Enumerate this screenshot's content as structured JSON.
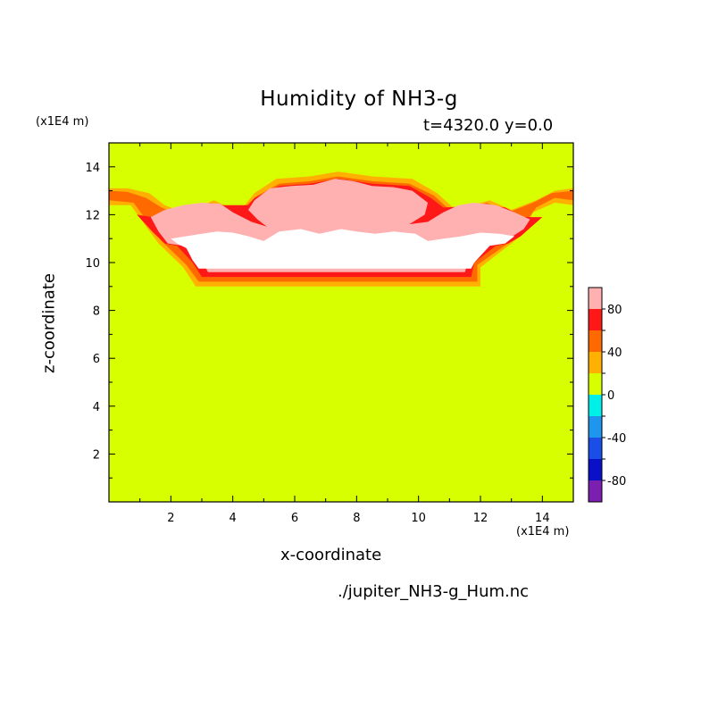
{
  "chart_data": {
    "type": "heatmap",
    "title": "Humidity of NH3-g",
    "subtitle": "t=4320.0 y=0.0",
    "xlabel": "x-coordinate",
    "ylabel": "z-coordinate",
    "x_unit": "(x1E4 m)",
    "y_unit": "(x1E4 m)",
    "xlim": [
      0,
      15
    ],
    "ylim": [
      0,
      15
    ],
    "x_ticks": [
      2,
      4,
      6,
      8,
      10,
      12,
      14
    ],
    "y_ticks": [
      2,
      4,
      6,
      8,
      10,
      12,
      14
    ],
    "colorbar": {
      "levels": [
        -100,
        -80,
        -60,
        -40,
        -20,
        0,
        20,
        40,
        60,
        80,
        100
      ],
      "tick_labels": [
        -80,
        -40,
        0,
        40,
        80
      ],
      "colors": [
        "#7a1fb0",
        "#0a10c8",
        "#1a4ee6",
        "#1e96ee",
        "#00f0e8",
        "#d8ff00",
        "#ffb000",
        "#ff6a00",
        "#ff1818",
        "#ffb0b0"
      ]
    },
    "background_value": 0,
    "regions": [
      {
        "level": "20-40",
        "color": "#ffb000",
        "points": [
          [
            0,
            13.1
          ],
          [
            0.6,
            13.1
          ],
          [
            1.3,
            12.9
          ],
          [
            1.8,
            12.4
          ],
          [
            2.4,
            12.1
          ],
          [
            3.4,
            12.6
          ],
          [
            4.2,
            12.1
          ],
          [
            4.7,
            12.9
          ],
          [
            5.4,
            13.5
          ],
          [
            6.5,
            13.6
          ],
          [
            7.4,
            13.8
          ],
          [
            8.5,
            13.6
          ],
          [
            9.8,
            13.5
          ],
          [
            10.6,
            12.9
          ],
          [
            11.2,
            12.2
          ],
          [
            12.3,
            12.6
          ],
          [
            13.0,
            12.2
          ],
          [
            13.8,
            12.6
          ],
          [
            14.4,
            13.0
          ],
          [
            15,
            13.1
          ],
          [
            15,
            12.4
          ],
          [
            14.4,
            12.5
          ],
          [
            13.7,
            12.1
          ],
          [
            13.4,
            11.2
          ],
          [
            13.0,
            10.8
          ],
          [
            12.0,
            9.8
          ],
          [
            12.0,
            9.0
          ],
          [
            2.8,
            9.0
          ],
          [
            2.4,
            9.8
          ],
          [
            1.6,
            10.8
          ],
          [
            1.2,
            11.5
          ],
          [
            0.7,
            12.4
          ],
          [
            0,
            12.4
          ]
        ]
      },
      {
        "level": "40-60",
        "color": "#ff6a00",
        "points": [
          [
            0,
            13.0
          ],
          [
            0.6,
            12.95
          ],
          [
            1.2,
            12.7
          ],
          [
            1.7,
            12.3
          ],
          [
            2.3,
            12.0
          ],
          [
            3.3,
            12.5
          ],
          [
            4.1,
            12.0
          ],
          [
            4.8,
            12.8
          ],
          [
            5.5,
            13.3
          ],
          [
            6.5,
            13.4
          ],
          [
            7.4,
            13.6
          ],
          [
            8.5,
            13.4
          ],
          [
            9.7,
            13.3
          ],
          [
            10.5,
            12.8
          ],
          [
            11.1,
            12.1
          ],
          [
            12.2,
            12.5
          ],
          [
            12.9,
            12.1
          ],
          [
            13.7,
            12.5
          ],
          [
            14.3,
            12.9
          ],
          [
            15,
            13.0
          ],
          [
            15,
            12.6
          ],
          [
            14.4,
            12.7
          ],
          [
            13.8,
            12.3
          ],
          [
            13.3,
            11.4
          ],
          [
            13.0,
            10.9
          ],
          [
            11.9,
            9.9
          ],
          [
            11.9,
            9.2
          ],
          [
            2.9,
            9.2
          ],
          [
            2.5,
            9.9
          ],
          [
            1.7,
            10.9
          ],
          [
            1.3,
            11.6
          ],
          [
            0.8,
            12.5
          ],
          [
            0,
            12.6
          ]
        ]
      },
      {
        "level": "60-80",
        "color": "#ff1818",
        "points": [
          [
            0.9,
            12.0
          ],
          [
            1.4,
            11.9
          ],
          [
            1.8,
            12.2
          ],
          [
            2.5,
            12.2
          ],
          [
            3.3,
            12.4
          ],
          [
            4.5,
            12.4
          ],
          [
            4.7,
            12.7
          ],
          [
            5.5,
            13.2
          ],
          [
            6.5,
            13.3
          ],
          [
            7.4,
            13.5
          ],
          [
            8.5,
            13.3
          ],
          [
            9.7,
            13.2
          ],
          [
            10.4,
            12.7
          ],
          [
            10.8,
            12.3
          ],
          [
            12.2,
            12.4
          ],
          [
            12.8,
            12.3
          ],
          [
            13.4,
            11.9
          ],
          [
            14.0,
            11.9
          ],
          [
            13.3,
            11.1
          ],
          [
            12.9,
            10.8
          ],
          [
            12.5,
            10.7
          ],
          [
            11.8,
            10.0
          ],
          [
            11.7,
            9.4
          ],
          [
            3.0,
            9.4
          ],
          [
            2.7,
            10.0
          ],
          [
            2.2,
            10.7
          ],
          [
            1.8,
            10.8
          ],
          [
            1.4,
            11.3
          ]
        ]
      },
      {
        "level": "80-100",
        "color": "#ffb0b0",
        "points": [
          [
            1.35,
            11.9
          ],
          [
            1.8,
            12.2
          ],
          [
            2.4,
            12.4
          ],
          [
            3.0,
            12.5
          ],
          [
            3.6,
            12.45
          ],
          [
            4.0,
            12.1
          ],
          [
            4.6,
            11.7
          ],
          [
            5.1,
            11.5
          ],
          [
            4.8,
            11.8
          ],
          [
            4.5,
            12.2
          ],
          [
            4.7,
            12.6
          ],
          [
            5.2,
            13.1
          ],
          [
            5.9,
            13.2
          ],
          [
            6.6,
            13.25
          ],
          [
            7.3,
            13.5
          ],
          [
            7.9,
            13.4
          ],
          [
            8.5,
            13.2
          ],
          [
            9.2,
            13.15
          ],
          [
            9.8,
            13.0
          ],
          [
            10.3,
            12.5
          ],
          [
            10.2,
            12.0
          ],
          [
            9.7,
            11.6
          ],
          [
            10.3,
            11.7
          ],
          [
            10.8,
            12.1
          ],
          [
            11.3,
            12.4
          ],
          [
            11.8,
            12.5
          ],
          [
            12.5,
            12.4
          ],
          [
            13.1,
            12.1
          ],
          [
            13.6,
            11.8
          ],
          [
            13.4,
            11.4
          ],
          [
            12.8,
            10.9
          ],
          [
            12.3,
            10.7
          ],
          [
            11.6,
            10.1
          ],
          [
            11.5,
            9.6
          ],
          [
            3.2,
            9.6
          ],
          [
            3.0,
            10.1
          ],
          [
            2.4,
            10.7
          ],
          [
            1.9,
            10.8
          ],
          [
            1.6,
            11.3
          ],
          [
            1.35,
            11.9
          ]
        ]
      },
      {
        "level": "100",
        "color": "#ffffff",
        "points": [
          [
            2.0,
            11.0
          ],
          [
            2.5,
            11.1
          ],
          [
            3.0,
            11.2
          ],
          [
            3.5,
            11.3
          ],
          [
            4.0,
            11.25
          ],
          [
            4.5,
            11.1
          ],
          [
            5.0,
            10.9
          ],
          [
            5.5,
            11.3
          ],
          [
            6.2,
            11.4
          ],
          [
            6.8,
            11.2
          ],
          [
            7.5,
            11.4
          ],
          [
            8.0,
            11.3
          ],
          [
            8.6,
            11.2
          ],
          [
            9.2,
            11.3
          ],
          [
            9.9,
            11.2
          ],
          [
            10.3,
            10.9
          ],
          [
            10.8,
            11.0
          ],
          [
            11.4,
            11.1
          ],
          [
            12.0,
            11.25
          ],
          [
            12.6,
            11.2
          ],
          [
            13.1,
            11.1
          ],
          [
            12.8,
            10.8
          ],
          [
            12.3,
            10.7
          ],
          [
            11.8,
            10.0
          ],
          [
            11.7,
            9.75
          ],
          [
            2.9,
            9.75
          ],
          [
            2.7,
            10.1
          ],
          [
            2.5,
            10.6
          ],
          [
            2.2,
            10.8
          ]
        ]
      }
    ]
  }
}
